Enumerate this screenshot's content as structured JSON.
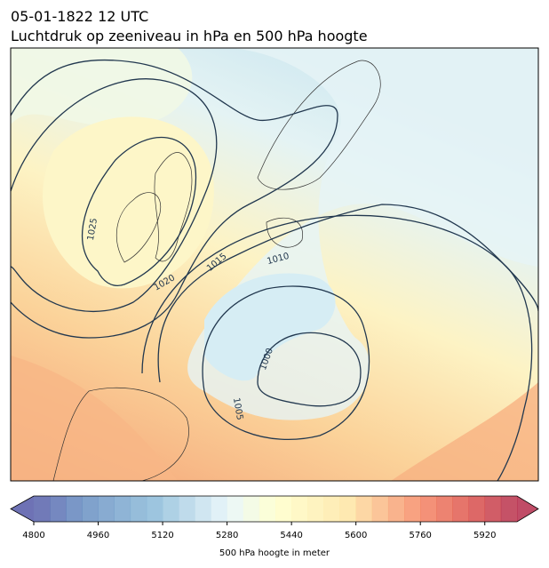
{
  "title": "05-01-1822 12 UTC",
  "subtitle": "Luchtdruk op zeeniveau in hPa en 500 hPa hoogte",
  "isobar_labels": [
    1025,
    1020,
    1015,
    1010,
    1005,
    1000
  ],
  "colorbar": {
    "label": "500 hPa hoogte in meter",
    "range": [
      4800,
      6000
    ],
    "step": 40,
    "ticks": [
      4800,
      4960,
      5120,
      5280,
      5440,
      5600,
      5760,
      5920
    ]
  }
}
